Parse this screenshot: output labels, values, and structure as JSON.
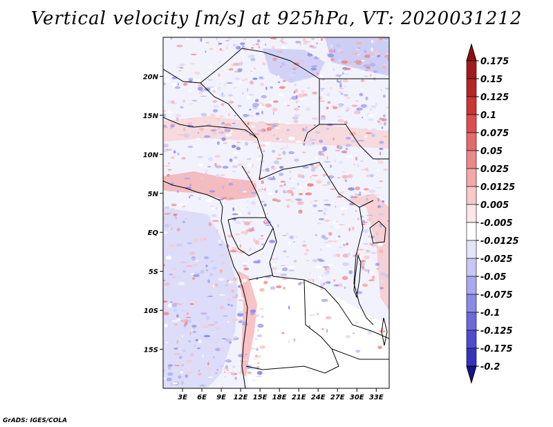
{
  "title": "Vertical velocity [m/s] at 925hPa, VT: 2020031212",
  "credit": "GrADS: IGES/COLA",
  "map": {
    "lon_range": [
      0,
      35
    ],
    "lat_range": [
      -20,
      25
    ],
    "lat_ticks": [
      {
        "value": 20,
        "label": "20N"
      },
      {
        "value": 15,
        "label": "15N"
      },
      {
        "value": 10,
        "label": "10N"
      },
      {
        "value": 5,
        "label": "5N"
      },
      {
        "value": 0,
        "label": "EQ"
      },
      {
        "value": -5,
        "label": "5S"
      },
      {
        "value": -10,
        "label": "10S"
      },
      {
        "value": -15,
        "label": "15S"
      }
    ],
    "lon_ticks": [
      {
        "value": 3,
        "label": "3E"
      },
      {
        "value": 6,
        "label": "6E"
      },
      {
        "value": 9,
        "label": "9E"
      },
      {
        "value": 12,
        "label": "12E"
      },
      {
        "value": 15,
        "label": "15E"
      },
      {
        "value": 18,
        "label": "18E"
      },
      {
        "value": 21,
        "label": "21E"
      },
      {
        "value": 24,
        "label": "24E"
      },
      {
        "value": 27,
        "label": "27E"
      },
      {
        "value": 30,
        "label": "30E"
      },
      {
        "value": 33,
        "label": "33E"
      }
    ]
  },
  "colorbar": {
    "levels": [
      {
        "label": "0.175",
        "color": "#a31a1a"
      },
      {
        "label": "0.15",
        "color": "#b82525"
      },
      {
        "label": "0.125",
        "color": "#cd3434"
      },
      {
        "label": "0.1",
        "color": "#de4d4d"
      },
      {
        "label": "0.075",
        "color": "#e66a6a"
      },
      {
        "label": "0.05",
        "color": "#ee8787"
      },
      {
        "label": "0.025",
        "color": "#f4a8a8"
      },
      {
        "label": "0.0125",
        "color": "#f9c8c8"
      },
      {
        "label": "0.005",
        "color": "#fde6e6"
      },
      {
        "label": "-0.005",
        "color": "#ffffff"
      },
      {
        "label": "-0.0125",
        "color": "#e4e4fb"
      },
      {
        "label": "-0.025",
        "color": "#c7c7f6"
      },
      {
        "label": "-0.05",
        "color": "#a8a8f0"
      },
      {
        "label": "-0.075",
        "color": "#8a8ae8"
      },
      {
        "label": "-0.1",
        "color": "#6a6adc"
      },
      {
        "label": "-0.125",
        "color": "#4d4dcf"
      },
      {
        "label": "-0.175",
        "color": "#3333bb"
      },
      {
        "label": "-0.2",
        "color": "#2020a6"
      }
    ],
    "top_color": "#8c1010",
    "bottom_color": "#14148f"
  }
}
